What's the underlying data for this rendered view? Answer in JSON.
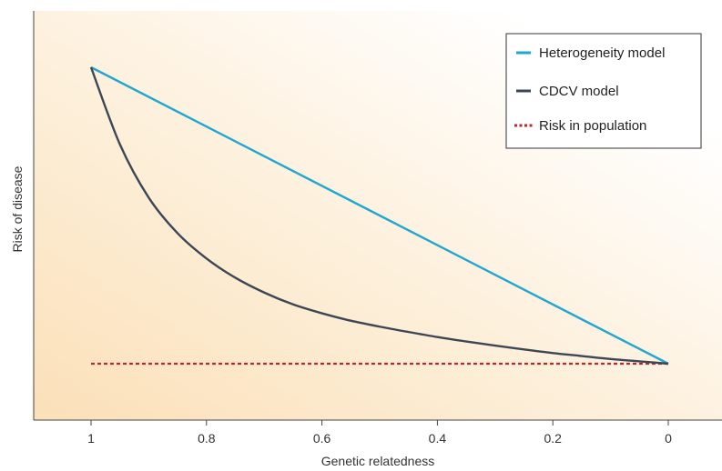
{
  "chart_data": {
    "type": "line",
    "xlabel": "Genetic relatedness",
    "ylabel": "Risk of disease",
    "xlim": [
      1.1,
      -0.05
    ],
    "x_reversed": true,
    "y_ticks_shown": false,
    "x_ticks": [
      1,
      0.8,
      0.6,
      0.4,
      0.2,
      0
    ],
    "x_tick_labels": [
      "1",
      "0.8",
      "0.6",
      "0.4",
      "0.2",
      "0"
    ],
    "series": [
      {
        "name": "Heterogeneity model",
        "color": "#1fa6d1",
        "style": "solid",
        "x": [
          1,
          0
        ],
        "y": [
          1.0,
          0.0
        ]
      },
      {
        "name": "CDCV model",
        "color": "#3c4654",
        "style": "solid",
        "x": [
          1,
          0.95,
          0.9,
          0.85,
          0.8,
          0.75,
          0.7,
          0.65,
          0.6,
          0.55,
          0.5,
          0.45,
          0.4,
          0.35,
          0.3,
          0.25,
          0.2,
          0.15,
          0.1,
          0.05,
          0
        ],
        "y": [
          1.0,
          0.74,
          0.56,
          0.44,
          0.355,
          0.29,
          0.24,
          0.2,
          0.17,
          0.145,
          0.125,
          0.107,
          0.09,
          0.075,
          0.061,
          0.048,
          0.036,
          0.026,
          0.016,
          0.008,
          0.0
        ]
      },
      {
        "name": "Risk in population",
        "color": "#c0262d",
        "style": "dotted",
        "x": [
          1,
          0
        ],
        "y": [
          0.0,
          0.0
        ]
      }
    ],
    "legend": {
      "position": "top-right",
      "entries": [
        "Heterogeneity model",
        "CDCV model",
        "Risk in population"
      ]
    },
    "grid": false,
    "background": "gradient-orange-to-white"
  }
}
